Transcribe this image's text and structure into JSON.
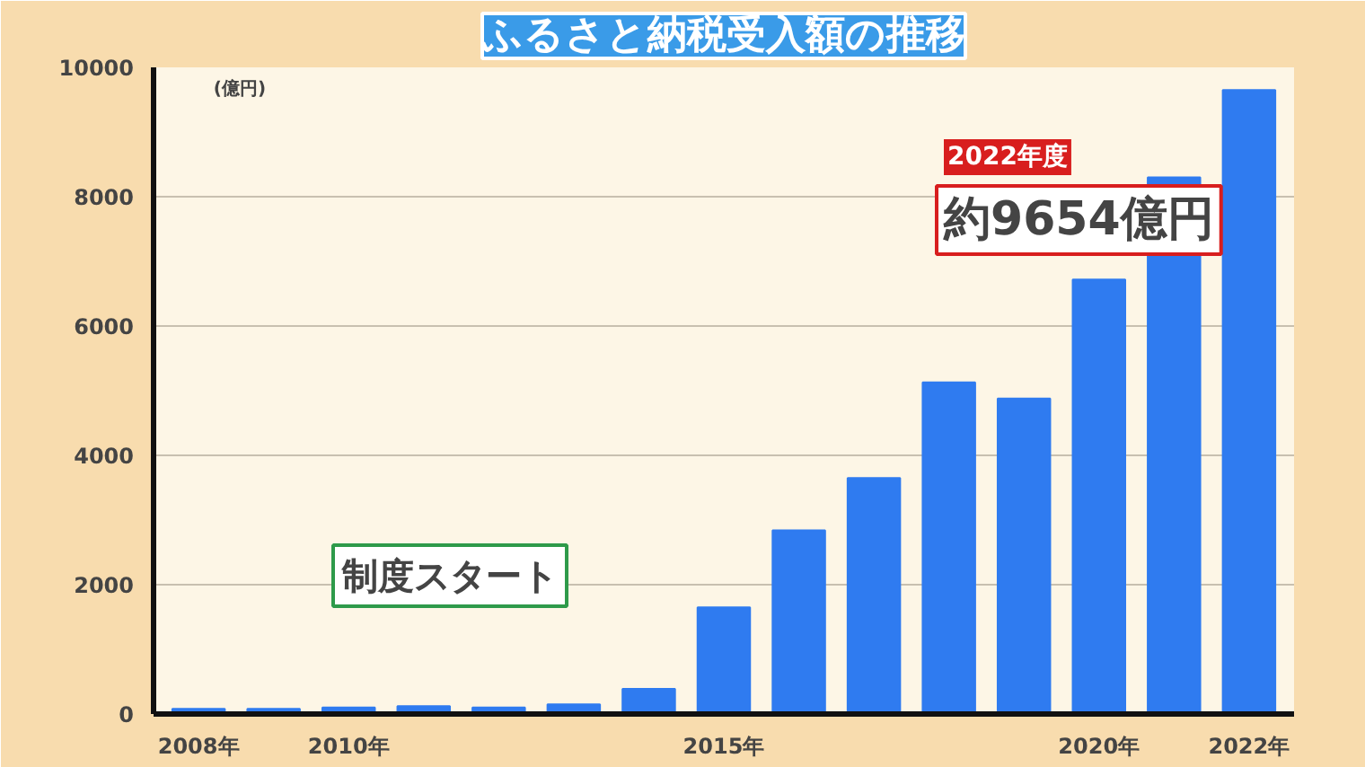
{
  "chart_data": {
    "type": "bar",
    "title": "ふるさと納税受入額の推移",
    "ylabel": "(億円)",
    "categories": [
      "2008年",
      null,
      "2010年",
      null,
      null,
      null,
      null,
      "2015年",
      null,
      null,
      null,
      null,
      "2020年",
      null,
      "2022年"
    ],
    "values": [
      80,
      80,
      100,
      120,
      100,
      150,
      390,
      1650,
      2840,
      3650,
      5130,
      4880,
      6720,
      8300,
      9650
    ],
    "color": "#2f7bf0",
    "ylim": [
      0,
      10000
    ],
    "yticks": [
      0,
      2000,
      4000,
      6000,
      8000,
      10000
    ],
    "grid": "y",
    "annotations": [
      "制度スタート",
      "2022年度",
      "約9654億円"
    ]
  }
}
